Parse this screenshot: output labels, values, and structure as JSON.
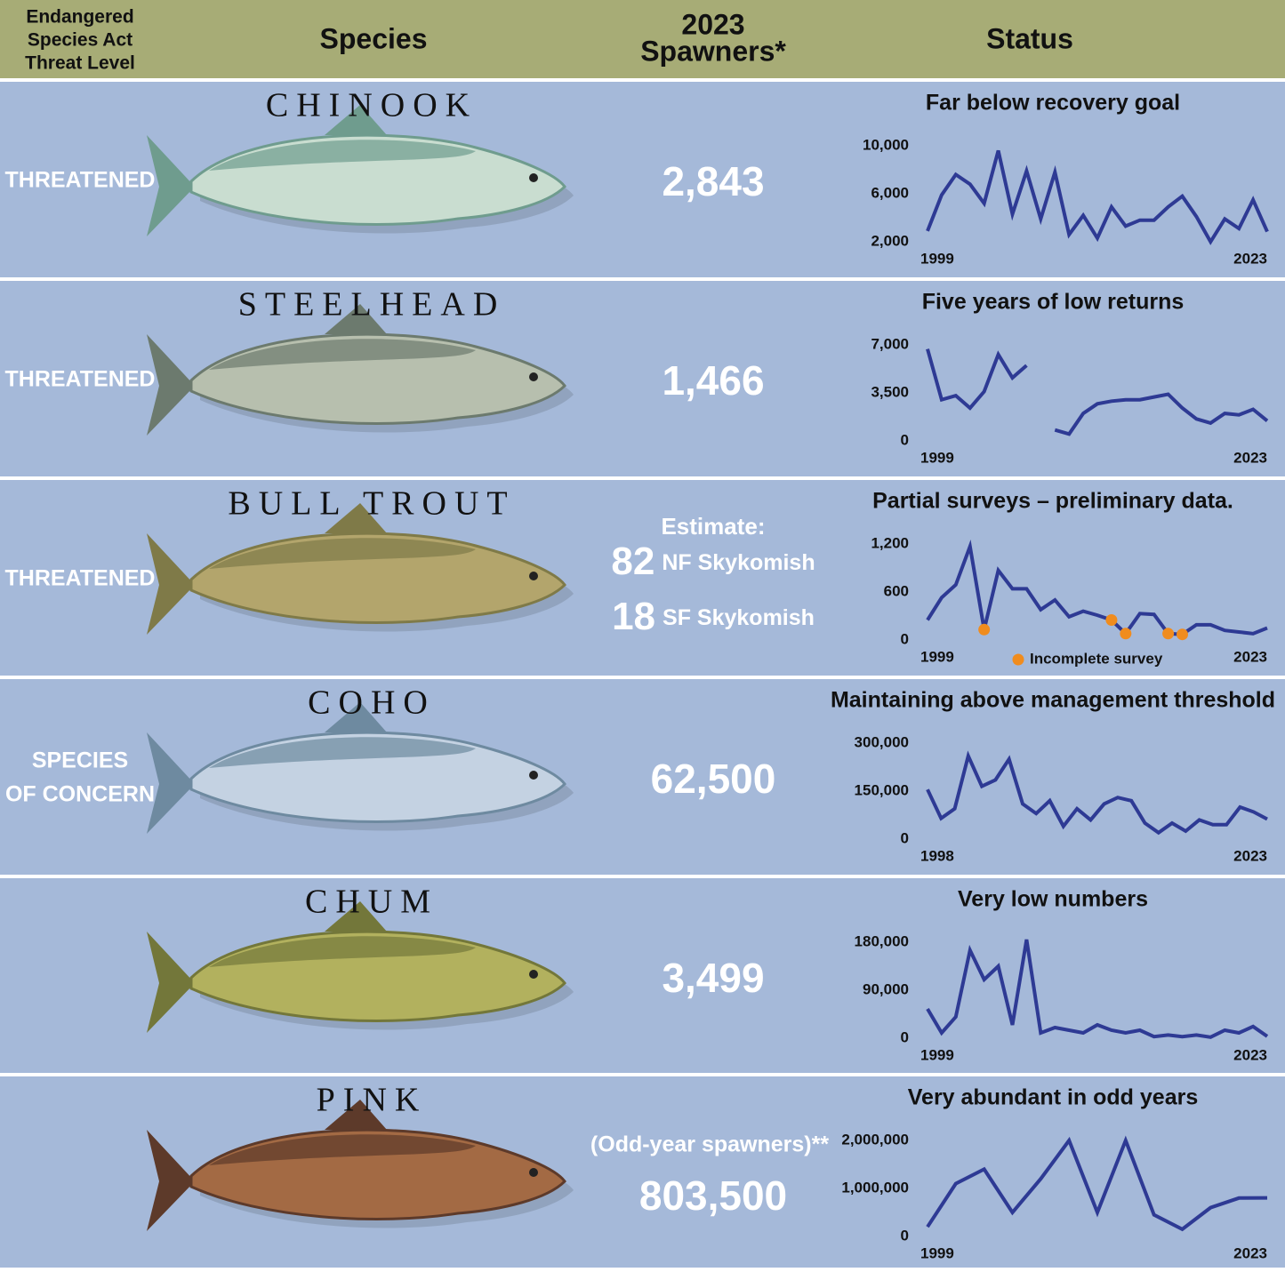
{
  "header": {
    "threat": [
      "Endangered",
      "Species Act",
      "Threat Level"
    ],
    "species": "Species",
    "spawners": [
      "2023",
      "Spawners*"
    ],
    "status": "Status"
  },
  "rows": [
    {
      "threat": [
        "THREATENED"
      ],
      "species": "CHINOOK",
      "spawners": "2,843",
      "status": "Far below recovery goal",
      "chart": {
        "type": "line",
        "x": [
          1999,
          2000,
          2001,
          2002,
          2003,
          2004,
          2005,
          2006,
          2007,
          2008,
          2009,
          2010,
          2011,
          2012,
          2013,
          2014,
          2015,
          2016,
          2017,
          2018,
          2019,
          2020,
          2021,
          2022,
          2023
        ],
        "xlim": [
          1999,
          2023
        ],
        "xticks": [
          1999,
          2023
        ],
        "ylim": [
          2000,
          10000
        ],
        "yticks": [
          {
            "value": 2000,
            "label": "2,000"
          },
          {
            "value": 6000,
            "label": "6,000"
          },
          {
            "value": 10000,
            "label": "10,000"
          }
        ],
        "series": [
          {
            "color": "#2e3a94",
            "values": [
              2900,
              5900,
              7600,
              6800,
              5200,
              9600,
              4300,
              7900,
              3900,
              7800,
              2600,
              4200,
              2300,
              4900,
              3300,
              3800,
              3800,
              4900,
              5800,
              4100,
              2000,
              3900,
              3100,
              5500,
              2843
            ]
          }
        ]
      }
    },
    {
      "threat": [
        "THREATENED"
      ],
      "species": "STEELHEAD",
      "spawners": "1,466",
      "status": "Five years of low returns",
      "chart": {
        "type": "line",
        "x": [
          1999,
          2000,
          2001,
          2002,
          2003,
          2004,
          2005,
          2006,
          2007,
          2008,
          2009,
          2010,
          2011,
          2012,
          2013,
          2014,
          2015,
          2016,
          2017,
          2018,
          2019,
          2020,
          2021,
          2022,
          2023
        ],
        "xlim": [
          1999,
          2023
        ],
        "xticks": [
          1999,
          2023
        ],
        "ylim": [
          0,
          7000
        ],
        "yticks": [
          0,
          {
            "value": 3500,
            "label": "3,500"
          },
          {
            "value": 7000,
            "label": "7,000"
          }
        ],
        "series": [
          {
            "color": "#2e3a94",
            "values": [
              6700,
              3000,
              3300,
              2400,
              3600,
              6300,
              4600,
              5500,
              null,
              800,
              500,
              2000,
              2700,
              2900,
              3000,
              3000,
              3200,
              3400,
              2400,
              1600,
              1300,
              2000,
              1900,
              2300,
              1466
            ]
          }
        ]
      }
    },
    {
      "threat": [
        "THREATENED"
      ],
      "species": "BULL TROUT",
      "spawners": {
        "estimate": "Estimate:",
        "counts": [
          {
            "n": "82",
            "label": "NF Skykomish"
          },
          {
            "n": "18",
            "label": "SF Skykomish"
          }
        ]
      },
      "status": "Partial surveys – preliminary data.",
      "chart": {
        "type": "line",
        "x": [
          1999,
          2000,
          2001,
          2002,
          2003,
          2004,
          2005,
          2006,
          2007,
          2008,
          2009,
          2010,
          2011,
          2012,
          2013,
          2014,
          2015,
          2016,
          2017,
          2018,
          2019,
          2020,
          2021,
          2022,
          2023
        ],
        "xlim": [
          1999,
          2023
        ],
        "xticks": [
          1999,
          2023
        ],
        "ylim": [
          0,
          1200
        ],
        "yticks": [
          0,
          600,
          {
            "value": 1200,
            "label": "1,200"
          }
        ],
        "series": [
          {
            "color": "#2e3a94",
            "values": [
              250,
              530,
              690,
              1170,
              130,
              870,
              640,
              640,
              380,
              500,
              290,
              360,
              310,
              250,
              80,
              330,
              320,
              80,
              70,
              190,
              190,
              120,
              100,
              80,
              150
            ]
          },
          {
            "name": "Incomplete survey",
            "color": "#f08c1e",
            "style": "markers",
            "values": [
              null,
              null,
              null,
              null,
              130,
              null,
              null,
              null,
              null,
              null,
              null,
              null,
              null,
              250,
              80,
              null,
              null,
              80,
              70,
              null,
              null,
              null,
              null,
              null,
              null
            ]
          }
        ]
      }
    },
    {
      "threat": [
        "SPECIES",
        "OF CONCERN"
      ],
      "species": "COHO",
      "spawners": "62,500",
      "status": "Maintaining above management threshold",
      "chart": {
        "type": "line",
        "x": [
          1998,
          1999,
          2000,
          2001,
          2002,
          2003,
          2004,
          2005,
          2006,
          2007,
          2008,
          2009,
          2010,
          2011,
          2012,
          2013,
          2014,
          2015,
          2016,
          2017,
          2018,
          2019,
          2020,
          2021,
          2022,
          2023
        ],
        "xlim": [
          1998,
          2023
        ],
        "xticks": [
          1998,
          2023
        ],
        "ylim": [
          0,
          300000
        ],
        "yticks": [
          0,
          {
            "value": 150000,
            "label": "150,000"
          },
          {
            "value": 300000,
            "label": "300,000"
          }
        ],
        "series": [
          {
            "color": "#2e3a94",
            "values": [
              155000,
              65000,
              95000,
              260000,
              165000,
              185000,
              250000,
              110000,
              80000,
              120000,
              40000,
              95000,
              60000,
              110000,
              130000,
              120000,
              50000,
              20000,
              50000,
              25000,
              60000,
              45000,
              45000,
              100000,
              85000,
              62500
            ]
          }
        ]
      }
    },
    {
      "threat": [],
      "species": "CHUM",
      "spawners": "3,499",
      "status": "Very low numbers",
      "chart": {
        "type": "line",
        "x": [
          1999,
          2000,
          2001,
          2002,
          2003,
          2004,
          2005,
          2006,
          2007,
          2008,
          2009,
          2010,
          2011,
          2012,
          2013,
          2014,
          2015,
          2016,
          2017,
          2018,
          2019,
          2020,
          2021,
          2022,
          2023
        ],
        "xlim": [
          1999,
          2023
        ],
        "xticks": [
          1999,
          2023
        ],
        "ylim": [
          0,
          180000
        ],
        "yticks": [
          0,
          {
            "value": 90000,
            "label": "90,000"
          },
          {
            "value": 180000,
            "label": "180,000"
          }
        ],
        "series": [
          {
            "color": "#2e3a94",
            "values": [
              55000,
              10000,
              40000,
              165000,
              110000,
              135000,
              25000,
              185000,
              10000,
              20000,
              15000,
              10000,
              25000,
              15000,
              10000,
              15000,
              3000,
              6000,
              3000,
              6000,
              2000,
              15000,
              10000,
              22000,
              3499
            ]
          }
        ]
      }
    },
    {
      "threat": [],
      "species": "PINK",
      "spawners": "803,500",
      "spawners_note": "(Odd-year spawners)**",
      "status": "Very abundant in odd years",
      "chart": {
        "type": "line",
        "x": [
          1999,
          2001,
          2003,
          2005,
          2007,
          2009,
          2011,
          2013,
          2015,
          2017,
          2019,
          2021,
          2023
        ],
        "xlim": [
          1999,
          2023
        ],
        "xticks": [
          1999,
          2023
        ],
        "ylim": [
          0,
          2000000
        ],
        "yticks": [
          0,
          {
            "value": 1000000,
            "label": "1,000,000"
          },
          {
            "value": 2000000,
            "label": "2,000,000"
          }
        ],
        "series": [
          {
            "color": "#2e3a94",
            "values": [
              200000,
              1100000,
              1400000,
              500000,
              1200000,
              2000000,
              500000,
              2000000,
              450000,
              150000,
              600000,
              800000,
              803500
            ]
          }
        ]
      }
    }
  ]
}
